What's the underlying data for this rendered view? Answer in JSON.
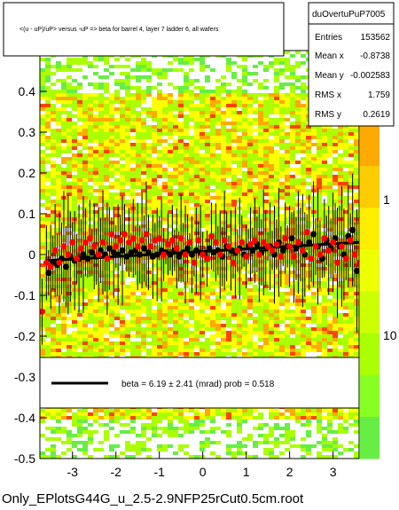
{
  "chart_data": {
    "type": "scatter",
    "title": "<(u - uP)/uP> versus -uP => beta for barrel 4, layer 7 ladder 6, all wafers",
    "xlabel": "",
    "ylabel": "",
    "xlim": [
      -3.75,
      3.6
    ],
    "ylim": [
      -0.5,
      0.5
    ],
    "xticks": [
      "-3",
      "-2",
      "-1",
      "0",
      "1",
      "2",
      "3"
    ],
    "yticks": [
      "-0.5",
      "-0.4",
      "-0.3",
      "-0.2",
      "-0.1",
      "0",
      "0.1",
      "0.2",
      "0.3",
      "0.4"
    ],
    "colz_ticks": [
      "1",
      "10"
    ],
    "stats": {
      "name": "duOvertuPuP7005",
      "rows": [
        {
          "label": "Entries",
          "value": "153562"
        },
        {
          "label": "Mean x",
          "value": "-0.8738"
        },
        {
          "label": "Mean y",
          "value": "-0.002583"
        },
        {
          "label": "RMS x",
          "value": "1.759"
        },
        {
          "label": "RMS y",
          "value": "0.2619"
        }
      ]
    },
    "legend": {
      "text": "beta =     6.19 ±   2.41 (mrad) prob = 0.518"
    },
    "fit_line": {
      "x": [
        -3.6,
        3.6
      ],
      "y": [
        -0.015,
        0.03
      ]
    },
    "series": [
      {
        "color": "#000000",
        "points": [
          [
            -3.55,
            -0.045
          ],
          [
            -3.45,
            -0.02
          ],
          [
            -3.35,
            -0.025
          ],
          [
            -3.25,
            -0.01
          ],
          [
            -3.15,
            -0.03
          ],
          [
            -3.05,
            -0.005
          ],
          [
            -2.95,
            -0.015
          ],
          [
            -2.85,
            -0.01
          ],
          [
            -2.75,
            0.0
          ],
          [
            -2.65,
            -0.01
          ],
          [
            -2.55,
            0.005
          ],
          [
            -2.45,
            -0.005
          ],
          [
            -2.35,
            0.01
          ],
          [
            -2.25,
            0.0
          ],
          [
            -2.15,
            0.015
          ],
          [
            -2.05,
            0.005
          ],
          [
            -1.95,
            0.0
          ],
          [
            -1.85,
            0.01
          ],
          [
            -1.75,
            -0.005
          ],
          [
            -1.65,
            0.005
          ],
          [
            -1.55,
            0.01
          ],
          [
            -1.45,
            0.0
          ],
          [
            -1.35,
            0.015
          ],
          [
            -1.25,
            0.005
          ],
          [
            -1.15,
            -0.005
          ],
          [
            -1.05,
            0.0
          ],
          [
            -0.95,
            0.01
          ],
          [
            -0.85,
            0.005
          ],
          [
            -0.75,
            0.0
          ],
          [
            -0.65,
            0.01
          ],
          [
            -0.55,
            -0.005
          ],
          [
            -0.45,
            0.005
          ],
          [
            -0.35,
            0.015
          ],
          [
            -0.25,
            0.0
          ],
          [
            -0.15,
            0.01
          ],
          [
            -0.05,
            0.005
          ],
          [
            0.05,
            0.0
          ],
          [
            0.15,
            0.015
          ],
          [
            0.25,
            0.005
          ],
          [
            0.35,
            0.01
          ],
          [
            0.45,
            -0.005
          ],
          [
            0.55,
            0.02
          ],
          [
            0.65,
            0.01
          ],
          [
            0.75,
            0.005
          ],
          [
            0.85,
            0.015
          ],
          [
            0.95,
            0.0
          ],
          [
            1.05,
            0.02
          ],
          [
            1.15,
            0.01
          ],
          [
            1.25,
            0.025
          ],
          [
            1.35,
            0.005
          ],
          [
            1.45,
            0.015
          ],
          [
            1.55,
            0.02
          ],
          [
            1.65,
            0.0
          ],
          [
            1.75,
            0.03
          ],
          [
            1.85,
            0.01
          ],
          [
            1.95,
            0.02
          ],
          [
            2.05,
            0.04
          ],
          [
            2.15,
            0.015
          ],
          [
            2.25,
            0.025
          ],
          [
            2.35,
            0.0
          ],
          [
            2.45,
            0.03
          ],
          [
            2.55,
            0.05
          ],
          [
            2.65,
            0.02
          ],
          [
            2.75,
            -0.01
          ],
          [
            2.85,
            0.035
          ],
          [
            2.95,
            0.015
          ],
          [
            3.05,
            0.04
          ],
          [
            3.15,
            0.02
          ],
          [
            3.25,
            0.0
          ],
          [
            3.35,
            0.045
          ],
          [
            3.45,
            0.06
          ],
          [
            3.55,
            -0.04
          ]
        ]
      },
      {
        "color": "#ff0000",
        "points": [
          [
            -3.7,
            -0.14
          ],
          [
            -3.6,
            -0.02
          ],
          [
            -3.5,
            -0.03
          ],
          [
            -3.4,
            0.01
          ],
          [
            -3.3,
            -0.02
          ],
          [
            -3.2,
            0.02
          ],
          [
            -3.1,
            0.0
          ],
          [
            -3.0,
            0.03
          ],
          [
            -2.9,
            -0.01
          ],
          [
            -2.8,
            0.015
          ],
          [
            -2.7,
            0.03
          ],
          [
            -2.6,
            0.04
          ],
          [
            -2.5,
            0.02
          ],
          [
            -2.4,
            0.0
          ],
          [
            -2.3,
            0.03
          ],
          [
            -2.2,
            -0.01
          ],
          [
            -2.1,
            0.05
          ],
          [
            -2.0,
            0.02
          ],
          [
            -1.9,
            0.035
          ],
          [
            -1.8,
            0.05
          ],
          [
            -1.7,
            0.03
          ],
          [
            -1.6,
            0.04
          ],
          [
            -1.5,
            0.02
          ],
          [
            -1.4,
            0.035
          ],
          [
            -1.3,
            0.05
          ],
          [
            -1.2,
            0.02
          ],
          [
            -1.1,
            0.035
          ],
          [
            -1.0,
            0.04
          ],
          [
            -0.9,
            0.0
          ],
          [
            -0.8,
            0.025
          ],
          [
            -0.7,
            0.035
          ],
          [
            -0.6,
            0.015
          ],
          [
            -0.5,
            0.04
          ],
          [
            -0.4,
            0.0
          ],
          [
            -0.3,
            0.03
          ],
          [
            -0.2,
            -0.02
          ],
          [
            -0.1,
            0.035
          ],
          [
            0.0,
            0.0
          ],
          [
            0.1,
            -0.01
          ],
          [
            0.2,
            0.045
          ],
          [
            0.3,
            0.03
          ],
          [
            0.4,
            0.0
          ],
          [
            0.5,
            0.035
          ],
          [
            0.6,
            0.02
          ],
          [
            0.7,
            -0.02
          ],
          [
            0.8,
            0.01
          ],
          [
            0.9,
            0.03
          ],
          [
            1.0,
            -0.005
          ],
          [
            1.1,
            0.025
          ],
          [
            1.2,
            0.035
          ],
          [
            1.3,
            0.0
          ],
          [
            1.4,
            0.03
          ],
          [
            1.5,
            0.02
          ],
          [
            1.6,
            0.01
          ],
          [
            1.7,
            0.025
          ],
          [
            1.8,
            -0.005
          ],
          [
            1.9,
            0.04
          ],
          [
            2.0,
            0.02
          ],
          [
            2.1,
            -0.005
          ],
          [
            2.2,
            0.03
          ],
          [
            2.3,
            0.01
          ],
          [
            2.4,
            0.055
          ],
          [
            2.5,
            -0.01
          ],
          [
            2.6,
            0.02
          ],
          [
            2.7,
            0.0
          ],
          [
            2.8,
            0.04
          ],
          [
            2.9,
            0.01
          ],
          [
            3.0,
            0.03
          ],
          [
            3.1,
            -0.02
          ],
          [
            3.2,
            0.02
          ],
          [
            3.3,
            -0.01
          ],
          [
            3.4,
            0.035
          ],
          [
            3.5,
            0.0
          ],
          [
            3.6,
            -0.02
          ]
        ]
      }
    ]
  },
  "footer": {
    "filename": "Only_EPlotsG44G_u_2.5-2.9NFP25rCut0.5cm.root"
  },
  "colors": {
    "background": "#ffffff",
    "fit_line": "#000000",
    "red_points": "#ff0000",
    "black_points": "#000000",
    "heatmap_high": "#ffaa00",
    "heatmap_mid": "#ffff00",
    "heatmap_low": "#aaff00"
  }
}
